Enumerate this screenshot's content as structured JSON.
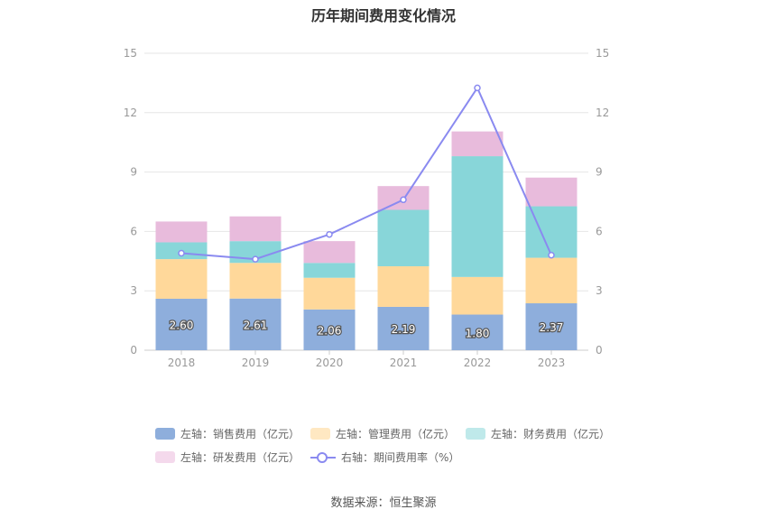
{
  "chart_data": {
    "type": "bar",
    "title": "历年期间费用变化情况",
    "categories": [
      "2018",
      "2019",
      "2020",
      "2021",
      "2022",
      "2023"
    ],
    "series": [
      {
        "name": "左轴：销售费用（亿元）",
        "axis": "left",
        "color": "#8eaedc",
        "values": [
          2.6,
          2.61,
          2.06,
          2.19,
          1.8,
          2.37
        ],
        "show_labels": true
      },
      {
        "name": "左轴：管理费用（亿元）",
        "axis": "left",
        "color": "#ffd89a",
        "values": [
          2.0,
          1.8,
          1.6,
          2.05,
          1.9,
          2.3
        ]
      },
      {
        "name": "左轴：财务费用（亿元）",
        "axis": "left",
        "color": "#88d6d9",
        "values": [
          0.85,
          1.1,
          0.75,
          2.85,
          6.1,
          2.6
        ]
      },
      {
        "name": "左轴：研发费用（亿元）",
        "axis": "left",
        "color": "#e8bbdc",
        "values": [
          1.05,
          1.25,
          1.1,
          1.2,
          1.25,
          1.45
        ]
      },
      {
        "name": "右轴：期间费用率（%）",
        "axis": "right",
        "type": "line",
        "color": "#8a8af0",
        "values": [
          4.9,
          4.6,
          5.85,
          7.6,
          13.25,
          4.8
        ]
      }
    ],
    "yticks": [
      "0",
      "3",
      "6",
      "9",
      "12",
      "15"
    ],
    "ylim": [
      0,
      15
    ],
    "y2lim": [
      0,
      15
    ],
    "grid": true,
    "legend_position": "bottom"
  },
  "source": "数据来源：恒生聚源"
}
